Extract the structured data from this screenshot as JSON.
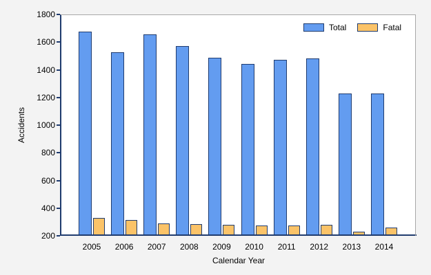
{
  "chart_data": {
    "type": "bar",
    "title": "",
    "categories": [
      "2005",
      "2006",
      "2007",
      "2008",
      "2009",
      "2010",
      "2011",
      "2012",
      "2013",
      "2014"
    ],
    "series": [
      {
        "name": "Total",
        "color": "#639CF0",
        "values": [
          1675,
          1525,
          1657,
          1570,
          1485,
          1440,
          1474,
          1480,
          1230,
          1230
        ]
      },
      {
        "name": "Fatal",
        "color": "#FBC368",
        "values": [
          328,
          312,
          291,
          283,
          281,
          275,
          276,
          278,
          230,
          261
        ]
      }
    ],
    "xlabel": "Calendar Year",
    "ylabel": "Accidents",
    "ylim": [
      200,
      1800
    ],
    "yticks": [
      200,
      400,
      600,
      800,
      1000,
      1200,
      1400,
      1600,
      1800
    ],
    "grid": false,
    "legend_position": "top-right",
    "colors": {
      "axis": "#1F3B6E",
      "bar_border": "#1F3B6E",
      "plot_border": "#A8A8A8",
      "background": "#F3F3F3",
      "plot_background": "#FFFFFF",
      "text": "#000000"
    }
  }
}
